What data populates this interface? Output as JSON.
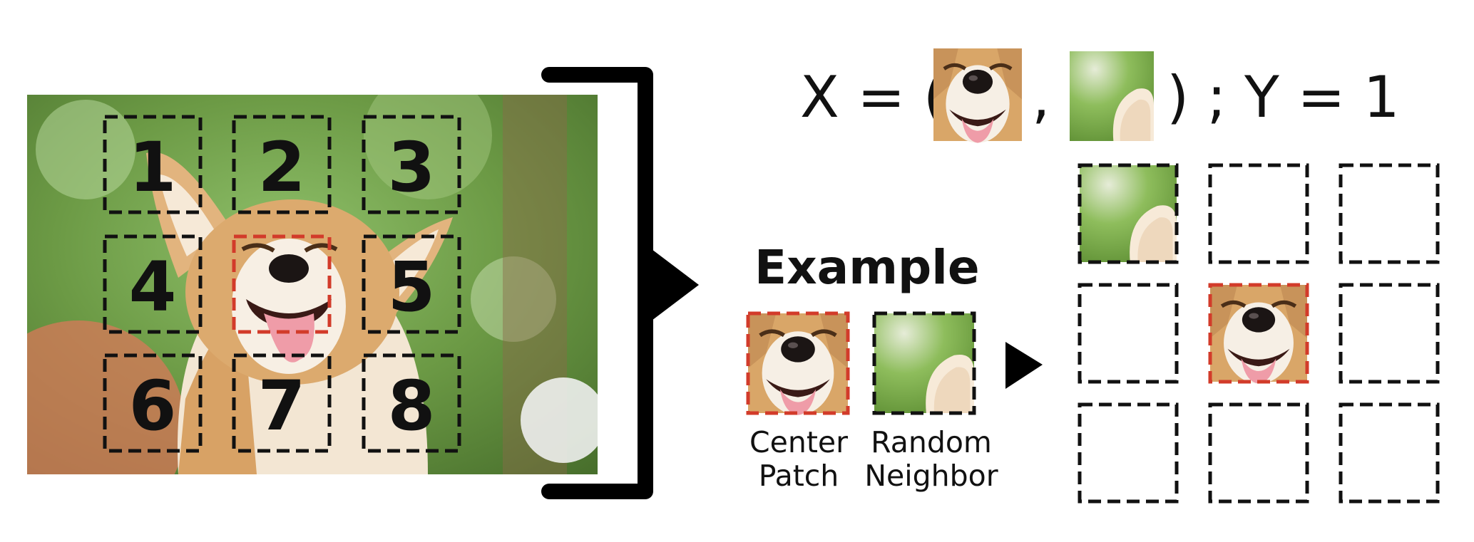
{
  "photo": {
    "description_icon": "corgi-photo",
    "grid_labels": [
      "1",
      "2",
      "3",
      "4",
      "",
      "5",
      "6",
      "7",
      "8"
    ]
  },
  "equation": {
    "x_label": "X = (",
    "comma": ",",
    "close_and_y": ") ; Y = 1"
  },
  "example": {
    "title": "Example",
    "center_caption_line1": "Center",
    "center_caption_line2": "Patch",
    "neighbor_caption_line1": "Random",
    "neighbor_caption_line2": "Neighbor"
  },
  "colors": {
    "center_border": "#d23b2a",
    "dashed_border": "#111111",
    "bracket": "#000000"
  }
}
